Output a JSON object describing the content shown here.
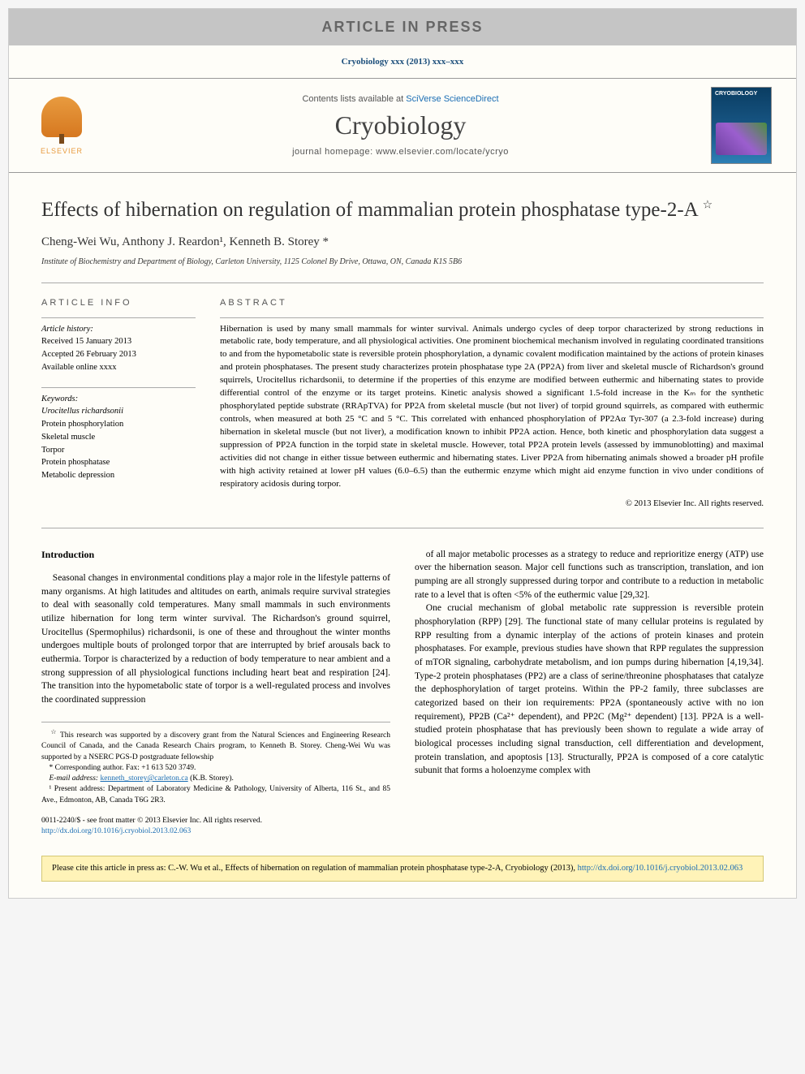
{
  "banner": {
    "text": "ARTICLE IN PRESS"
  },
  "journal_ref": "Cryobiology xxx (2013) xxx–xxx",
  "masthead": {
    "elsevier_label": "ELSEVIER",
    "contents_prefix": "Contents lists available at ",
    "contents_link": "SciVerse ScienceDirect",
    "journal_name": "Cryobiology",
    "homepage_prefix": "journal homepage: ",
    "homepage_url": "www.elsevier.com/locate/ycryo",
    "cover_title": "CRYOBIOLOGY"
  },
  "article": {
    "title": "Effects of hibernation on regulation of mammalian protein phosphatase type-2-A",
    "title_footnote_mark": "☆",
    "authors_html": "Cheng-Wei Wu, Anthony J. Reardon¹, Kenneth B. Storey *",
    "affiliation": "Institute of Biochemistry and Department of Biology, Carleton University, 1125 Colonel By Drive, Ottawa, ON, Canada K1S 5B6"
  },
  "info": {
    "heading": "ARTICLE INFO",
    "history_label": "Article history:",
    "received": "Received 15 January 2013",
    "accepted": "Accepted 26 February 2013",
    "online": "Available online xxxx",
    "keywords_label": "Keywords:",
    "keywords": [
      "Urocitellus richardsonii",
      "Protein phosphorylation",
      "Skeletal muscle",
      "Torpor",
      "Protein phosphatase",
      "Metabolic depression"
    ]
  },
  "abstract": {
    "heading": "ABSTRACT",
    "text": "Hibernation is used by many small mammals for winter survival. Animals undergo cycles of deep torpor characterized by strong reductions in metabolic rate, body temperature, and all physiological activities. One prominent biochemical mechanism involved in regulating coordinated transitions to and from the hypometabolic state is reversible protein phosphorylation, a dynamic covalent modification maintained by the actions of protein kinases and protein phosphatases. The present study characterizes protein phosphatase type 2A (PP2A) from liver and skeletal muscle of Richardson's ground squirrels, Urocitellus richardsonii, to determine if the properties of this enzyme are modified between euthermic and hibernating states to provide differential control of the enzyme or its target proteins. Kinetic analysis showed a significant 1.5-fold increase in the Kₘ for the synthetic phosphorylated peptide substrate (RRApTVA) for PP2A from skeletal muscle (but not liver) of torpid ground squirrels, as compared with euthermic controls, when measured at both 25 °C and 5 °C. This correlated with enhanced phosphorylation of PP2Aα Tyr-307 (a 2.3-fold increase) during hibernation in skeletal muscle (but not liver), a modification known to inhibit PP2A action. Hence, both kinetic and phosphorylation data suggest a suppression of PP2A function in the torpid state in skeletal muscle. However, total PP2A protein levels (assessed by immunoblotting) and maximal activities did not change in either tissue between euthermic and hibernating states. Liver PP2A from hibernating animals showed a broader pH profile with high activity retained at lower pH values (6.0–6.5) than the euthermic enzyme which might aid enzyme function in vivo under conditions of respiratory acidosis during torpor.",
    "copyright": "© 2013 Elsevier Inc. All rights reserved."
  },
  "body": {
    "intro_heading": "Introduction",
    "left_p1": "Seasonal changes in environmental conditions play a major role in the lifestyle patterns of many organisms. At high latitudes and altitudes on earth, animals require survival strategies to deal with seasonally cold temperatures. Many small mammals in such environments utilize hibernation for long term winter survival. The Richardson's ground squirrel, Urocitellus (Spermophilus) richardsonii, is one of these and throughout the winter months undergoes multiple bouts of prolonged torpor that are interrupted by brief arousals back to euthermia. Torpor is characterized by a reduction of body temperature to near ambient and a strong suppression of all physiological functions including heart beat and respiration [24]. The transition into the hypometabolic state of torpor is a well-regulated process and involves the coordinated suppression",
    "right_p1": "of all major metabolic processes as a strategy to reduce and reprioritize energy (ATP) use over the hibernation season. Major cell functions such as transcription, translation, and ion pumping are all strongly suppressed during torpor and contribute to a reduction in metabolic rate to a level that is often <5% of the euthermic value [29,32].",
    "right_p2": "One crucial mechanism of global metabolic rate suppression is reversible protein phosphorylation (RPP) [29]. The functional state of many cellular proteins is regulated by RPP resulting from a dynamic interplay of the actions of protein kinases and protein phosphatases. For example, previous studies have shown that RPP regulates the suppression of mTOR signaling, carbohydrate metabolism, and ion pumps during hibernation [4,19,34]. Type-2 protein phosphatases (PP2) are a class of serine/threonine phosphatases that catalyze the dephosphorylation of target proteins. Within the PP-2 family, three subclasses are categorized based on their ion requirements: PP2A (spontaneously active with no ion requirement), PP2B (Ca²⁺ dependent), and PP2C (Mg²⁺ dependent) [13]. PP2A is a well-studied protein phosphatase that has previously been shown to regulate a wide array of biological processes including signal transduction, cell differentiation and development, protein translation, and apoptosis [13]. Structurally, PP2A is composed of a core catalytic subunit that forms a holoenzyme complex with"
  },
  "footnotes": {
    "star": "This research was supported by a discovery grant from the Natural Sciences and Engineering Research Council of Canada, and the Canada Research Chairs program, to Kenneth B. Storey. Cheng-Wei Wu was supported by a NSERC PGS-D postgraduate fellowship",
    "corr": "* Corresponding author. Fax: +1 613 520 3749.",
    "email_label": "E-mail address: ",
    "email": "kenneth_storey@carleton.ca",
    "email_suffix": " (K.B. Storey).",
    "addr1": "¹ Present address: Department of Laboratory Medicine & Pathology, University of Alberta, 116 St., and 85 Ave., Edmonton, AB, Canada T6G 2R3."
  },
  "footer": {
    "rights1": "0011-2240/$ - see front matter © 2013 Elsevier Inc. All rights reserved.",
    "doi": "http://dx.doi.org/10.1016/j.cryobiol.2013.02.063"
  },
  "cite": {
    "text": "Please cite this article in press as: C.-W. Wu et al., Effects of hibernation on regulation of mammalian protein phosphatase type-2-A, Cryobiology (2013), ",
    "url": "http://dx.doi.org/10.1016/j.cryobiol.2013.02.063"
  },
  "colors": {
    "link": "#1a6db3",
    "banner_bg": "#c5c5c5",
    "cite_bg": "#fff3b8"
  }
}
